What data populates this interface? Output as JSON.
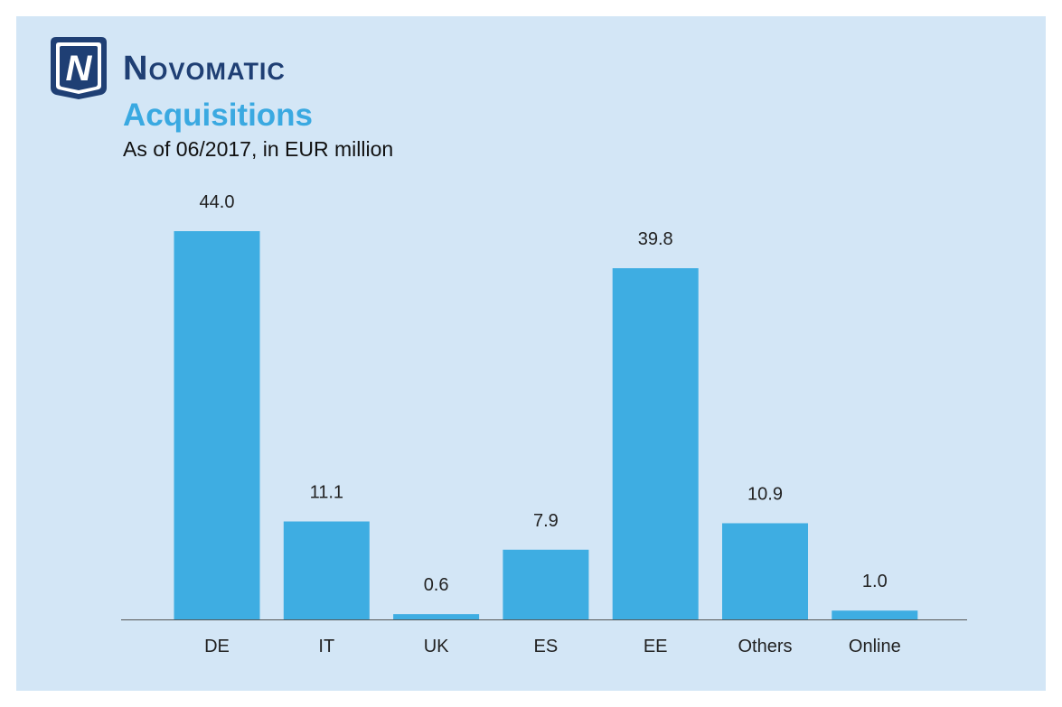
{
  "brand": {
    "logo_letter": "N",
    "name": "Novomatic",
    "color": "#1f3f74"
  },
  "chart_data": {
    "type": "bar",
    "title": "Acquisitions",
    "subtitle": "As of 06/2017, in EUR million",
    "categories": [
      "DE",
      "IT",
      "UK",
      "ES",
      "EE",
      "Others",
      "Online"
    ],
    "values": [
      44.0,
      11.1,
      0.6,
      7.9,
      39.8,
      10.9,
      1.0
    ],
    "value_labels": [
      "44.0",
      "11.1",
      "0.6",
      "7.9",
      "39.8",
      "10.9",
      "1.0"
    ],
    "ylim": [
      0,
      44.0
    ],
    "grid": false,
    "legend": "none",
    "bar_color": "#3eade2",
    "background_color": "#d3e6f6"
  }
}
